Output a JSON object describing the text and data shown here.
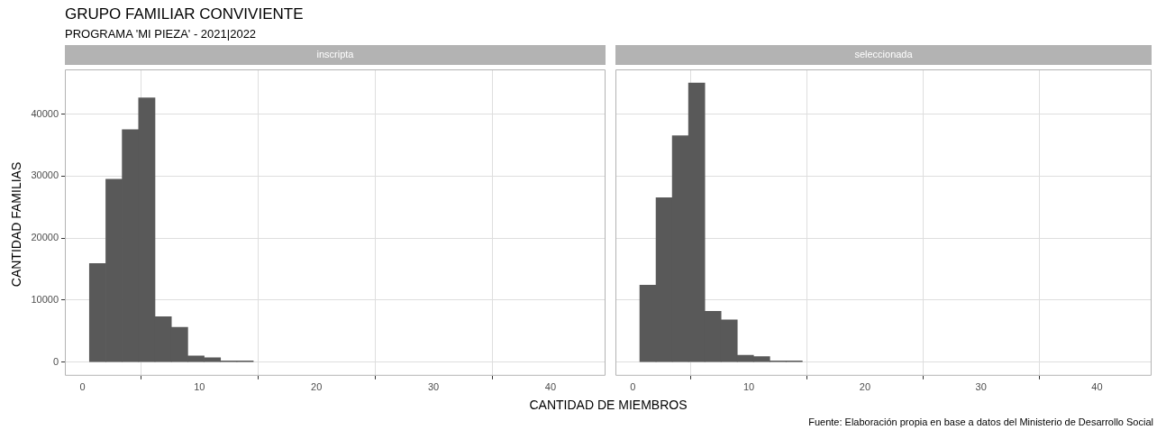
{
  "chart_data": [
    {
      "type": "histogram",
      "title": "GRUPO FAMILIAR CONVIVIENTE",
      "subtitle": "PROGRAMA 'MI PIEZA' - 2021|2022",
      "xlabel": "CANTIDAD DE MIEMBROS",
      "ylabel": "CANTIDAD FAMILIAS",
      "annotations": [
        "inscripta",
        "Fuente: Elaboración propia en base a datos del Ministerio de Desarrollo Social"
      ],
      "bins": [
        0.6,
        2.0,
        3.4,
        4.8,
        6.2,
        7.6,
        9.0,
        10.4,
        11.8,
        13.2,
        14.6
      ],
      "values": [
        15900,
        29500,
        37500,
        42600,
        7300,
        5600,
        1000,
        700,
        200,
        200
      ],
      "color": "#595959",
      "xlim": [
        -1.5,
        44.7
      ],
      "xticks": [
        0,
        10,
        20,
        30,
        40
      ],
      "ylim": [
        -2200,
        47200
      ],
      "yticks": [
        0,
        10000,
        20000,
        30000,
        40000
      ],
      "grid": true
    },
    {
      "type": "histogram",
      "annotations": [
        "seleccionada"
      ],
      "bins": [
        0.6,
        2.0,
        3.4,
        4.8,
        6.2,
        7.6,
        9.0,
        10.4,
        11.8,
        13.2,
        14.6
      ],
      "values": [
        12400,
        26500,
        36500,
        45000,
        8200,
        6800,
        1100,
        900,
        200,
        200
      ],
      "color": "#595959",
      "xlim": [
        -1.5,
        44.7
      ],
      "xticks": [
        0,
        10,
        20,
        30,
        40
      ],
      "ylim": [
        -2200,
        47200
      ],
      "yticks": [
        0,
        10000,
        20000,
        30000,
        40000
      ],
      "grid": true,
      "tick_labels": "x"
    }
  ]
}
